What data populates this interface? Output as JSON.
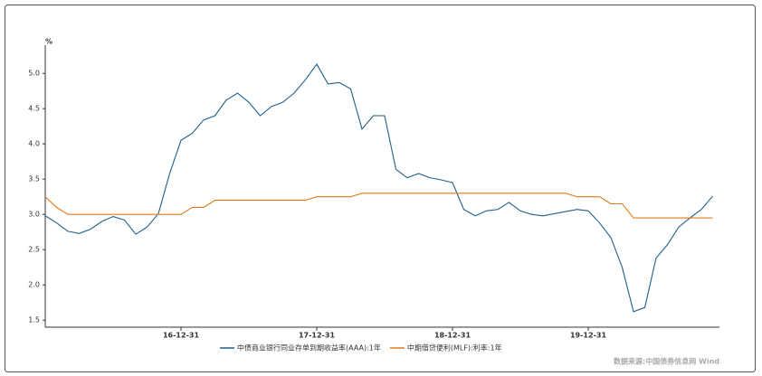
{
  "chart_data": {
    "type": "line",
    "y_unit": "%",
    "x": [
      "15-12-31",
      "16-01-31",
      "16-02-29",
      "16-03-31",
      "16-04-30",
      "16-05-31",
      "16-06-30",
      "16-07-31",
      "16-08-31",
      "16-09-30",
      "16-10-31",
      "16-11-30",
      "16-12-31",
      "17-01-31",
      "17-02-28",
      "17-03-31",
      "17-04-30",
      "17-05-31",
      "17-06-30",
      "17-07-31",
      "17-08-31",
      "17-09-30",
      "17-10-31",
      "17-11-30",
      "17-12-31",
      "18-01-31",
      "18-02-28",
      "18-03-31",
      "18-04-30",
      "18-05-31",
      "18-06-30",
      "18-07-31",
      "18-08-31",
      "18-09-30",
      "18-10-31",
      "18-11-30",
      "18-12-31",
      "19-01-31",
      "19-02-28",
      "19-03-31",
      "19-04-30",
      "19-05-31",
      "19-06-30",
      "19-07-31",
      "19-08-31",
      "19-09-30",
      "19-10-31",
      "19-11-30",
      "19-12-31",
      "20-01-31",
      "20-02-29",
      "20-03-31",
      "20-04-30",
      "20-05-31",
      "20-06-30",
      "20-07-31",
      "20-08-31",
      "20-09-30",
      "20-10-31",
      "20-11-30"
    ],
    "series": [
      {
        "name": "中债商业银行同业存单到期收益率(AAA):1年",
        "color": "#1f5f8b",
        "values": [
          2.98,
          2.88,
          2.76,
          2.73,
          2.79,
          2.9,
          2.97,
          2.92,
          2.72,
          2.82,
          3.01,
          3.58,
          4.05,
          4.15,
          4.34,
          4.4,
          4.62,
          4.72,
          4.59,
          4.4,
          4.53,
          4.59,
          4.72,
          4.91,
          5.13,
          4.85,
          4.87,
          4.78,
          4.21,
          4.4,
          4.4,
          3.64,
          3.52,
          3.58,
          3.52,
          3.49,
          3.45,
          3.07,
          2.98,
          3.05,
          3.07,
          3.17,
          3.05,
          3.0,
          2.98,
          3.01,
          3.04,
          3.07,
          3.05,
          2.88,
          2.67,
          2.25,
          1.62,
          1.68,
          2.38,
          2.57,
          2.82,
          2.95,
          3.07,
          3.26
        ]
      },
      {
        "name": "中期借贷便利(MLF):利率:1年",
        "color": "#e07b18",
        "values": [
          3.25,
          3.1,
          3.0,
          3.0,
          3.0,
          3.0,
          3.0,
          3.0,
          3.0,
          3.0,
          3.0,
          3.0,
          3.0,
          3.1,
          3.1,
          3.2,
          3.2,
          3.2,
          3.2,
          3.2,
          3.2,
          3.2,
          3.2,
          3.2,
          3.25,
          3.25,
          3.25,
          3.25,
          3.3,
          3.3,
          3.3,
          3.3,
          3.3,
          3.3,
          3.3,
          3.3,
          3.3,
          3.3,
          3.3,
          3.3,
          3.3,
          3.3,
          3.3,
          3.3,
          3.3,
          3.3,
          3.3,
          3.25,
          3.25,
          3.25,
          3.15,
          3.15,
          2.95,
          2.95,
          2.95,
          2.95,
          2.95,
          2.95,
          2.95,
          2.95
        ]
      }
    ],
    "xticks": [
      "16-12-31",
      "17-12-31",
      "18-12-31",
      "19-12-31"
    ],
    "ylim": [
      1.4,
      5.4
    ],
    "yticks": [
      1.5,
      {
        "value": 2,
        "label": "2.0"
      },
      2.5,
      {
        "value": 3,
        "label": "3.0"
      },
      3.5,
      {
        "value": 4,
        "label": "4.0"
      },
      4.5,
      {
        "value": 5,
        "label": "5.0"
      }
    ],
    "source": "数据来源:中国债券信息网 Wind"
  }
}
